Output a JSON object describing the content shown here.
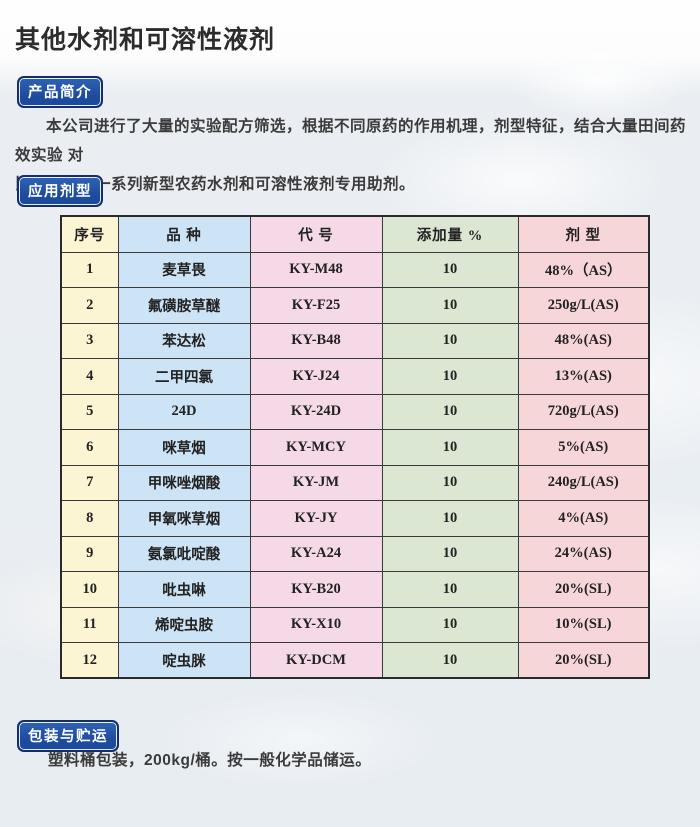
{
  "page": {
    "title": "其他水剂和可溶性液剂"
  },
  "sections": {
    "intro": {
      "badge": "产品简介",
      "line1": "本公司进行了大量的实验配方筛选，根据不同原药的作用机理，剂型特征，结合大量田间药效实验 对",
      "line2": "比，研发出一系列新型农药水剂和可溶性液剂专用助剂。"
    },
    "formulations": {
      "badge": "应用剂型",
      "table": {
        "headers": [
          "序号",
          "品 种",
          "代 号",
          "添加量 %",
          "剂 型"
        ],
        "rows": [
          [
            "1",
            "麦草畏",
            "KY-M48",
            "10",
            "48%（AS）"
          ],
          [
            "2",
            "氟磺胺草醚",
            "KY-F25",
            "10",
            "250g/L(AS)"
          ],
          [
            "3",
            "苯达松",
            "KY-B48",
            "10",
            "48%(AS)"
          ],
          [
            "4",
            "二甲四氯",
            "KY-J24",
            "10",
            "13%(AS)"
          ],
          [
            "5",
            "24D",
            "KY-24D",
            "10",
            "720g/L(AS)"
          ],
          [
            "6",
            "咪草烟",
            "KY-MCY",
            "10",
            "5%(AS)"
          ],
          [
            "7",
            "甲咪唑烟酸",
            "KY-JM",
            "10",
            "240g/L(AS)"
          ],
          [
            "8",
            "甲氧咪草烟",
            "KY-JY",
            "10",
            "4%(AS)"
          ],
          [
            "9",
            "氨氯吡啶酸",
            "KY-A24",
            "10",
            "24%(AS)"
          ],
          [
            "10",
            "吡虫啉",
            "KY-B20",
            "10",
            "20%(SL)"
          ],
          [
            "11",
            "烯啶虫胺",
            "KY-X10",
            "10",
            "10%(SL)"
          ],
          [
            "12",
            "啶虫脒",
            "KY-DCM",
            "10",
            "20%(SL)"
          ]
        ]
      }
    },
    "packaging": {
      "badge": "包装与贮运",
      "text": "塑料桶包装，200kg/桶。按一般化学品储运。"
    }
  },
  "colors": {
    "badge_fill": "#1c4a9c",
    "badge_fill_light": "#2e62b6",
    "badge_border": "#122f6b",
    "col_no_bg": "#fcf5d4",
    "col_name_bg": "#cde4f6",
    "col_code_bg": "#f5d9e7",
    "col_amount_bg": "#dbe7d2",
    "col_form_bg": "#f7d6d9",
    "page_bg": "#e8edf2"
  }
}
